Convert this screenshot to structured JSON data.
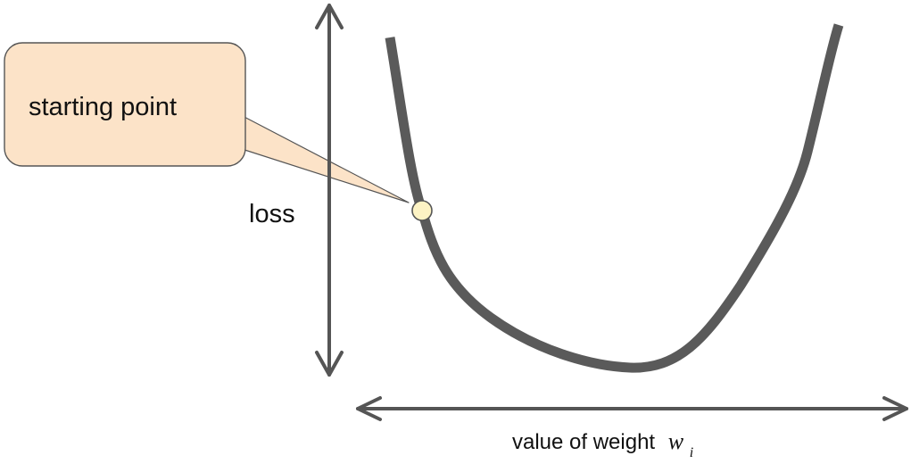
{
  "diagram": {
    "callout_text": "starting point",
    "y_axis_label": "loss",
    "x_axis_label_prefix": "value of weight",
    "x_axis_label_variable": "w",
    "x_axis_label_subscript": "i",
    "colors": {
      "curve": "#5a5a5a",
      "axis": "#555555",
      "callout_fill": "#fce3c8",
      "callout_stroke": "#555555",
      "point_fill": "#fdf3c4",
      "point_stroke": "#555555"
    }
  }
}
